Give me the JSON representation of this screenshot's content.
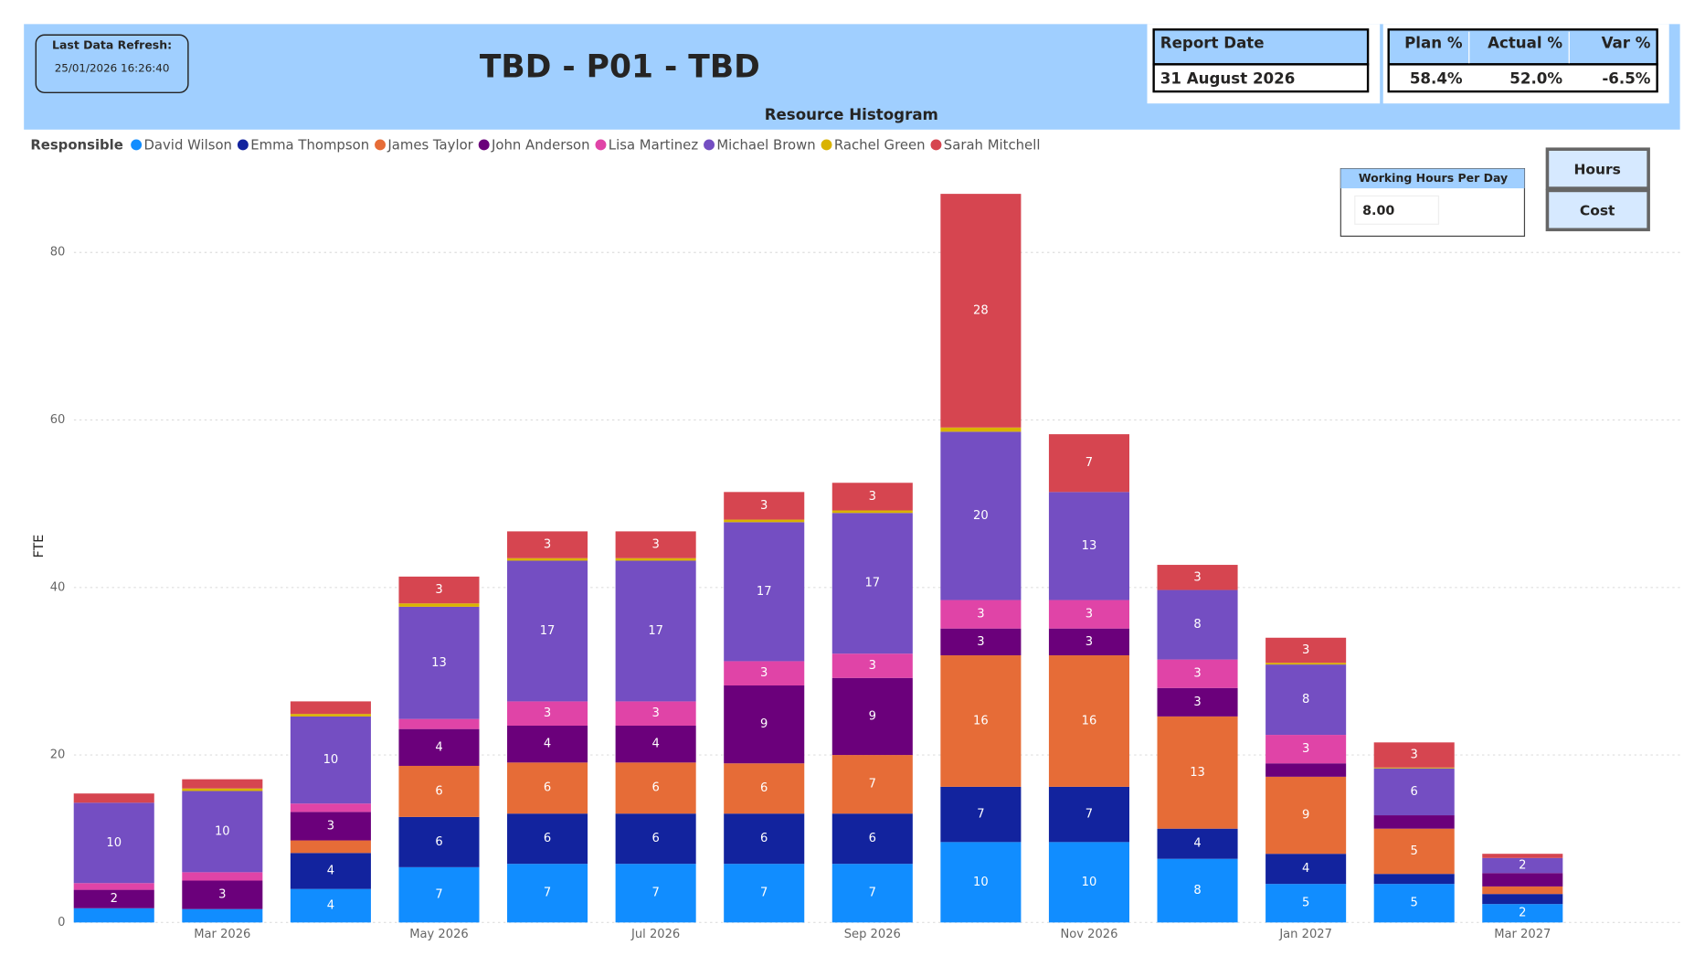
{
  "header": {
    "refresh_label": "Last Data Refresh:",
    "refresh_value": "25/01/2026 16:26:40",
    "title": "TBD - P01 - TBD",
    "report_date_label": "Report Date",
    "report_date_value": "31 August 2026",
    "kpi_headers": [
      "Plan %",
      "Actual %",
      "Var %"
    ],
    "kpi_values": [
      "58.4%",
      "52.0%",
      "-6.5%"
    ]
  },
  "controls": {
    "working_hours_label": "Working Hours Per Day",
    "working_hours_value": "8.00",
    "buttons": [
      "Hours",
      "Cost"
    ]
  },
  "chart_data": {
    "type": "stacked_bar",
    "title": "Resource Histogram",
    "legend_title": "Responsible",
    "y_label": "FTE",
    "categories": [
      null,
      "Mar 2026",
      null,
      "May 2026",
      null,
      "Jul 2026",
      null,
      "Sep 2026",
      null,
      "Nov 2026",
      null,
      "Jan 2027",
      null,
      "Mar 2027"
    ],
    "ylim": [
      0,
      90
    ],
    "yticks": [
      0,
      20,
      40,
      60,
      80
    ],
    "grid": true,
    "legend": "top-left",
    "series": [
      {
        "name": "David Wilson",
        "color": "#118DFF",
        "values": [
          1.7,
          1.6,
          4.0,
          6.6,
          7.0,
          7.0,
          7.0,
          7.0,
          9.6,
          9.6,
          7.6,
          4.6,
          4.6,
          2.2
        ],
        "value_labels": [
          null,
          null,
          "4",
          "7",
          "7",
          "7",
          "7",
          "7",
          "10",
          "10",
          "8",
          "5",
          "5",
          "2"
        ]
      },
      {
        "name": "Emma Thompson",
        "color": "#12239E",
        "values": [
          0,
          0,
          4.3,
          6.0,
          6.0,
          6.0,
          6.0,
          6.0,
          6.6,
          6.6,
          3.6,
          3.6,
          1.2,
          1.2
        ],
        "value_labels": [
          null,
          null,
          "4",
          "6",
          "6",
          "6",
          "6",
          "6",
          "7",
          "7",
          "4",
          "4",
          null,
          null
        ]
      },
      {
        "name": "James Taylor",
        "color": "#E66C37",
        "values": [
          0,
          0,
          1.5,
          6.1,
          6.1,
          6.1,
          6.0,
          7.0,
          15.7,
          15.7,
          13.4,
          9.2,
          5.4,
          0.9
        ],
        "value_labels": [
          null,
          null,
          null,
          "6",
          "6",
          "6",
          "6",
          "7",
          "16",
          "16",
          "13",
          "9",
          "5",
          null
        ]
      },
      {
        "name": "John Anderson",
        "color": "#6B007B",
        "values": [
          2.2,
          3.4,
          3.4,
          4.4,
          4.4,
          4.4,
          9.3,
          9.2,
          3.2,
          3.2,
          3.4,
          1.6,
          1.6,
          1.6
        ],
        "value_labels": [
          "2",
          "3",
          "3",
          "4",
          "4",
          "4",
          "9",
          "9",
          "3",
          "3",
          "3",
          null,
          null,
          null
        ]
      },
      {
        "name": "Lisa Martinez",
        "color": "#E044A7",
        "values": [
          0.8,
          1.0,
          1.0,
          1.2,
          2.9,
          2.9,
          2.9,
          2.9,
          3.4,
          3.4,
          3.4,
          3.4,
          0,
          0
        ],
        "value_labels": [
          null,
          null,
          null,
          null,
          "3",
          "3",
          "3",
          "3",
          "3",
          "3",
          "3",
          "3",
          null,
          null
        ]
      },
      {
        "name": "Michael Brown",
        "color": "#744EC2",
        "values": [
          9.6,
          9.7,
          10.4,
          13.4,
          16.8,
          16.8,
          16.6,
          16.8,
          20.1,
          12.9,
          8.3,
          8.4,
          5.6,
          1.8
        ],
        "value_labels": [
          "10",
          "10",
          "10",
          "13",
          "17",
          "17",
          "17",
          "17",
          "20",
          "13",
          "8",
          "8",
          "6",
          "2"
        ]
      },
      {
        "name": "Rachel Green",
        "color": "#D9B300",
        "values": [
          0,
          0.3,
          0.3,
          0.4,
          0.3,
          0.3,
          0.3,
          0.3,
          0.5,
          0,
          0,
          0.2,
          0.1,
          0
        ],
        "value_labels": [
          null,
          null,
          null,
          null,
          null,
          null,
          null,
          null,
          null,
          null,
          null,
          null,
          null,
          null
        ]
      },
      {
        "name": "Sarah Mitchell",
        "color": "#D64550",
        "values": [
          1.1,
          1.1,
          1.5,
          3.2,
          3.2,
          3.2,
          3.3,
          3.3,
          27.9,
          6.9,
          3.0,
          3.0,
          3.0,
          0.5
        ],
        "value_labels": [
          null,
          null,
          null,
          "3",
          "3",
          "3",
          "3",
          "3",
          "28",
          "7",
          "3",
          "3",
          "3",
          null
        ]
      }
    ]
  }
}
